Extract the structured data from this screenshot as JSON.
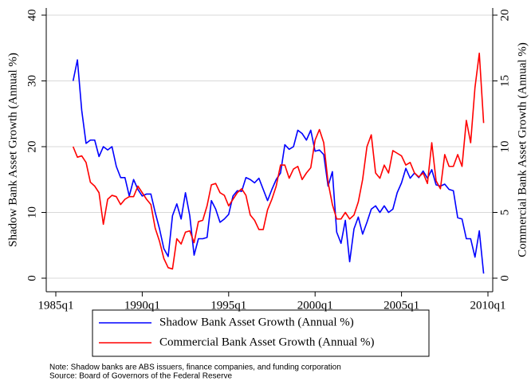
{
  "chart_data": {
    "type": "line",
    "x": [
      "1986q1",
      "1986q2",
      "1986q3",
      "1986q4",
      "1987q1",
      "1987q2",
      "1987q3",
      "1987q4",
      "1988q1",
      "1988q2",
      "1988q3",
      "1988q4",
      "1989q1",
      "1989q2",
      "1989q3",
      "1989q4",
      "1990q1",
      "1990q2",
      "1990q3",
      "1990q4",
      "1991q1",
      "1991q2",
      "1991q3",
      "1991q4",
      "1992q1",
      "1992q2",
      "1992q3",
      "1992q4",
      "1993q1",
      "1993q2",
      "1993q3",
      "1993q4",
      "1994q1",
      "1994q2",
      "1994q3",
      "1994q4",
      "1995q1",
      "1995q2",
      "1995q3",
      "1995q4",
      "1996q1",
      "1996q2",
      "1996q3",
      "1996q4",
      "1997q1",
      "1997q2",
      "1997q3",
      "1997q4",
      "1998q1",
      "1998q2",
      "1998q3",
      "1998q4",
      "1999q1",
      "1999q2",
      "1999q3",
      "1999q4",
      "2000q1",
      "2000q2",
      "2000q3",
      "2000q4",
      "2001q1",
      "2001q2",
      "2001q3",
      "2001q4",
      "2002q1",
      "2002q2",
      "2002q3",
      "2002q4",
      "2003q1",
      "2003q2",
      "2003q3",
      "2003q4",
      "2004q1",
      "2004q2",
      "2004q3",
      "2004q4",
      "2005q1",
      "2005q2",
      "2005q3",
      "2005q4",
      "2006q1",
      "2006q2",
      "2006q3",
      "2006q4",
      "2007q1",
      "2007q2",
      "2007q3",
      "2007q4",
      "2008q1",
      "2008q2",
      "2008q3",
      "2008q4",
      "2009q1",
      "2009q2",
      "2009q3",
      "2009q4"
    ],
    "x_label": "dateq",
    "y_label": "Shadow Bank Asset Growth (Annual %)",
    "y2_label": "Commercial Bank Asset Growth (Annual %)",
    "series": [
      {
        "name": "Shadow Bank Asset Growth (Annual %)",
        "color": "#0000ff",
        "axis": "y",
        "values": [
          30,
          33.2,
          25.5,
          20.5,
          21,
          21,
          18.5,
          20,
          19.5,
          20,
          17,
          15.3,
          15.3,
          12.5,
          15,
          13.5,
          12.5,
          12.8,
          12.8,
          10,
          7.5,
          4.5,
          3.3,
          9.5,
          11.3,
          9,
          13,
          9.5,
          3.5,
          6,
          6,
          6.2,
          11.8,
          10.5,
          8.5,
          9,
          9.7,
          12.5,
          13.3,
          13.2,
          15.3,
          15,
          14.5,
          15.2,
          13.5,
          11.8,
          13.5,
          15,
          16,
          20.3,
          19.6,
          20,
          22.5,
          22,
          21,
          22.5,
          19.3,
          19.5,
          18.8,
          14,
          16.2,
          7,
          5.3,
          8.8,
          2.5,
          7.5,
          9.3,
          6.7,
          8.5,
          10.5,
          11,
          10,
          11,
          10,
          10.5,
          13,
          14.5,
          16.7,
          15.2,
          16,
          15.3,
          16.3,
          15.2,
          16.5,
          14.2,
          14,
          14.3,
          13.5,
          13.3,
          9.2,
          9,
          6,
          6,
          3.2,
          7.2,
          0.7
        ]
      },
      {
        "name": "Commercial Bank Asset Growth (Annual %)",
        "color": "#ff0000",
        "axis": "y2",
        "values": [
          10,
          9.2,
          9.3,
          8.8,
          7.3,
          7,
          6.5,
          4.1,
          6,
          6.3,
          6.2,
          5.6,
          6,
          6.2,
          6.2,
          7,
          6.5,
          6,
          5.6,
          3.8,
          2.8,
          1.5,
          0.8,
          0.7,
          3,
          2.6,
          3.5,
          3.6,
          2.7,
          4.3,
          4.4,
          5.5,
          7.1,
          7.2,
          6.5,
          6.3,
          5.5,
          6,
          6.5,
          6.8,
          6.3,
          4.8,
          4.4,
          3.7,
          3.7,
          5.2,
          6,
          7,
          8.6,
          8.6,
          7.6,
          8.3,
          8.5,
          7.5,
          8,
          8.4,
          10.5,
          11.3,
          10.3,
          7.3,
          5.6,
          4.5,
          4.5,
          5,
          4.5,
          4.8,
          5.8,
          7.5,
          10,
          10.9,
          8,
          7.6,
          8.6,
          8,
          9.7,
          9.5,
          9.3,
          8.6,
          8.8,
          8,
          7.7,
          8,
          7.2,
          10.3,
          7.4,
          6.8,
          9.4,
          8.5,
          8.5,
          9.4,
          8.5,
          12,
          10.3,
          14.5,
          17.1,
          11.8
        ]
      }
    ],
    "xlim": [
      "1985q1",
      "2010q1"
    ],
    "xticks": [
      "1985q1",
      "1990q1",
      "1995q1",
      "2000q1",
      "2005q1",
      "2010q1"
    ],
    "ylim": [
      0,
      40
    ],
    "yticks": [
      0,
      10,
      20,
      30,
      40
    ],
    "y2lim": [
      0,
      20
    ],
    "y2ticks": [
      0,
      5,
      10,
      15,
      20
    ],
    "grid": true,
    "note": "Note: Shadow banks are ABS issuers, finance companies, and funding corporation",
    "source": "Source: Board of Governors of the Federal Reserve"
  }
}
